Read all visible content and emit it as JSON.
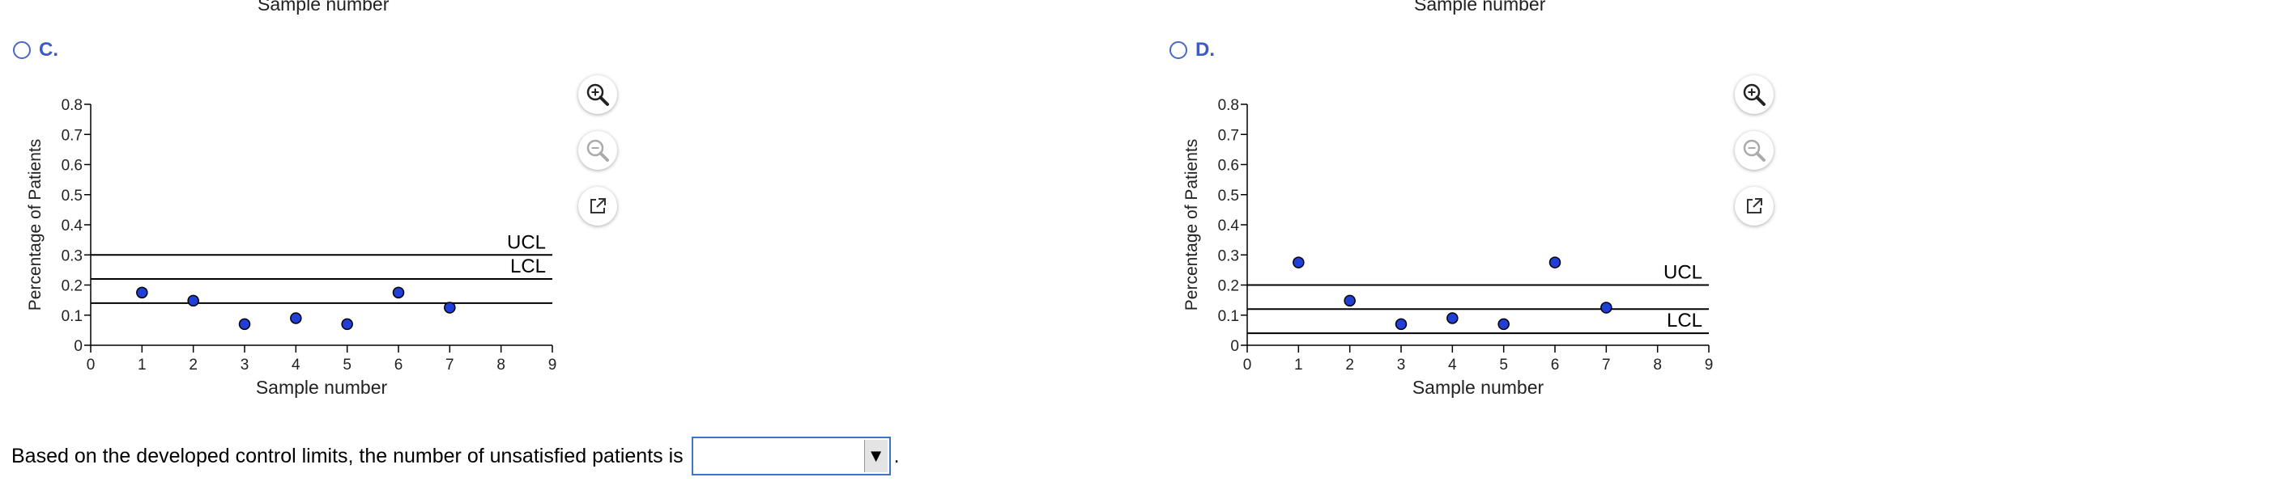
{
  "chart_data": [
    {
      "type": "scatter",
      "option": "C.",
      "xlabel": "Sample number",
      "ylabel": "Percentage of Patients",
      "xlim": [
        0,
        9
      ],
      "ylim": [
        0,
        0.8
      ],
      "x_ticks": [
        "0",
        "1",
        "2",
        "3",
        "4",
        "5",
        "6",
        "7",
        "8",
        "9"
      ],
      "y_ticks": [
        "0",
        "0.1",
        "0.2",
        "0.3",
        "0.4",
        "0.5",
        "0.6",
        "0.7",
        "0.8"
      ],
      "x": [
        1,
        2,
        3,
        4,
        5,
        6,
        7
      ],
      "values": [
        0.175,
        0.148,
        0.07,
        0.09,
        0.07,
        0.175,
        0.125
      ],
      "lines": [
        {
          "y": 0.3,
          "label": "UCL"
        },
        {
          "y": 0.22,
          "label": "LCL"
        },
        {
          "y": 0.14,
          "label": ""
        }
      ],
      "point_color": "#1f3fd6"
    },
    {
      "type": "scatter",
      "option": "D.",
      "xlabel": "Sample number",
      "ylabel": "Percentage of Patients",
      "xlim": [
        0,
        9
      ],
      "ylim": [
        0,
        0.8
      ],
      "x_ticks": [
        "0",
        "1",
        "2",
        "3",
        "4",
        "5",
        "6",
        "7",
        "8",
        "9"
      ],
      "y_ticks": [
        "0",
        "0.1",
        "0.2",
        "0.3",
        "0.4",
        "0.5",
        "0.6",
        "0.7",
        "0.8"
      ],
      "x": [
        1,
        2,
        3,
        4,
        5,
        6,
        7
      ],
      "values": [
        0.275,
        0.148,
        0.07,
        0.09,
        0.07,
        0.275,
        0.125
      ],
      "lines": [
        {
          "y": 0.2,
          "label": "UCL"
        },
        {
          "y": 0.12,
          "label": ""
        },
        {
          "y": 0.04,
          "label": "LCL"
        }
      ],
      "point_color": "#1f3fd6"
    }
  ],
  "top_labels": {
    "left": "Sample number",
    "right": "Sample number"
  },
  "options": {
    "c_label": "C.",
    "d_label": "D."
  },
  "tools": {
    "zoom_in": "zoom-in-icon",
    "zoom_out": "zoom-out-icon",
    "popout": "popout-icon"
  },
  "question": {
    "text": "Based on the developed control limits, the number of unsatisfied patients is",
    "selected_value": "",
    "arrow": "▼",
    "suffix": "."
  }
}
